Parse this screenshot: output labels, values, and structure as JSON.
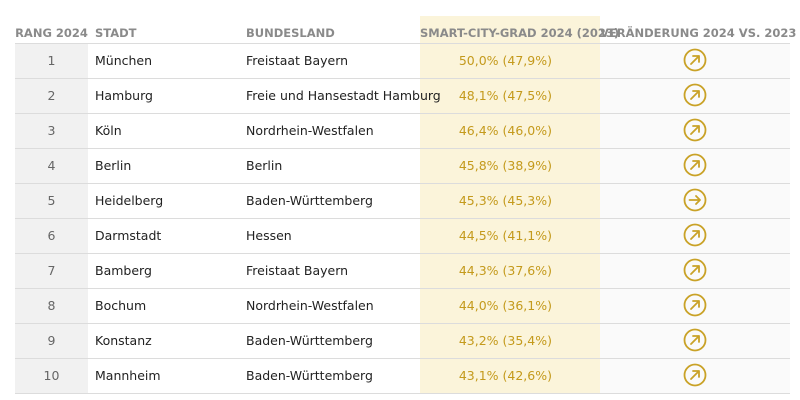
{
  "table": {
    "header": [
      "RANG 2024",
      "STADT",
      "BUNDESLAND",
      "SMART-CITY-GRAD 2024 (2023)",
      "VERÄNDERUNG 2024 VS. 2023"
    ],
    "rows": [
      [
        "1",
        "München",
        "Freistaat Bayern",
        "50,0% (47,9%)"
      ],
      [
        "2",
        "Hamburg",
        "Freie und Hansestadt Hamburg",
        "48,1% (47,5%)"
      ],
      [
        "3",
        "Köln",
        "Nordrhein-Westfalen",
        "46,4% (46,0%)"
      ],
      [
        "4",
        "Berlin",
        "Berlin",
        "45,8% (38,9%)"
      ],
      [
        "5",
        "Heidelberg",
        "Baden-Württemberg",
        "45,3% (45,3%)"
      ],
      [
        "6",
        "Darmstadt",
        "Hessen",
        "44,5% (41,1%)"
      ],
      [
        "7",
        "Bamberg",
        "Freistaat Bayern",
        "44,3% (37,6%)"
      ],
      [
        "8",
        "Bochum",
        "Nordrhein-Westfalen",
        "44,0% (36,1%)"
      ],
      [
        "9",
        "Konstanz",
        "Baden-Württemberg",
        "43,2% (35,4%)"
      ],
      [
        "10",
        "Mannheim",
        "Baden-Württemberg",
        "43,1% (42,6%)"
      ]
    ]
  }
}
